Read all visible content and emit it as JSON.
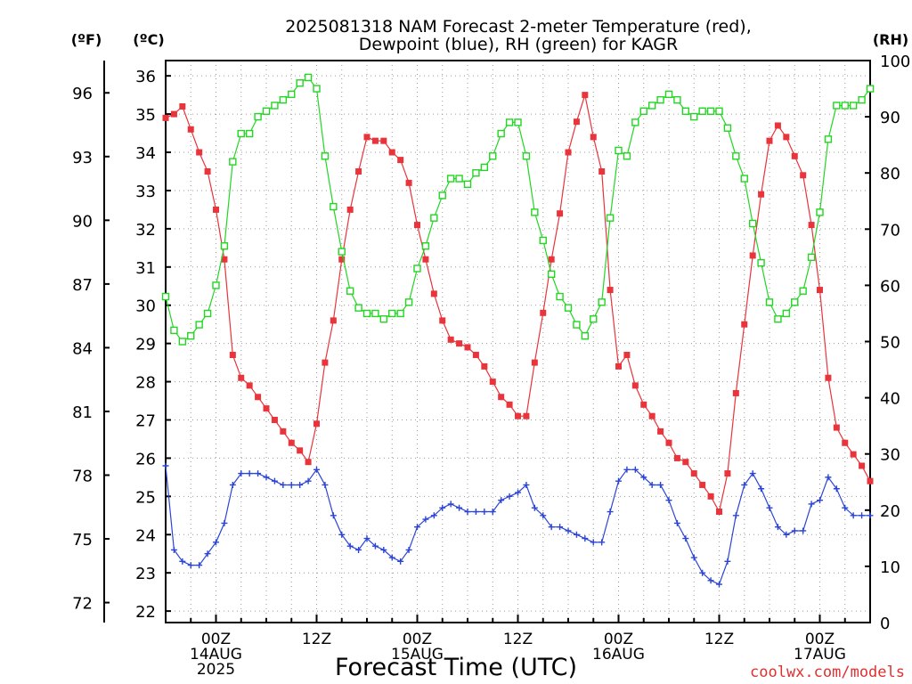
{
  "chart_data": {
    "type": "line",
    "title_line1": "2025081318 NAM Forecast 2-meter Temperature (red),",
    "title_line2": "Dewpoint (blue), RH (green) for KAGR",
    "xlabel": "Forecast Time (UTC)",
    "left_unit_outer": "(ºF)",
    "left_unit_inner": "(ºC)",
    "right_unit": "(RH)",
    "watermark": "coolwx.com/models",
    "x_forecast_hours": [
      0,
      84
    ],
    "y_celsius_range": [
      21.7,
      36.4
    ],
    "y_rh_range": [
      0,
      100
    ],
    "grid": true,
    "celsius_ticks": [
      22,
      23,
      24,
      25,
      26,
      27,
      28,
      29,
      30,
      31,
      32,
      33,
      34,
      35,
      36
    ],
    "fahrenheit_ticks": [
      72,
      75,
      78,
      81,
      84,
      87,
      90,
      93,
      96
    ],
    "rh_ticks": [
      0,
      10,
      20,
      30,
      40,
      50,
      60,
      70,
      80,
      90,
      100
    ],
    "x_ticks": [
      {
        "hour": 6,
        "lines": [
          "00Z",
          "14AUG",
          "2025"
        ]
      },
      {
        "hour": 18,
        "lines": [
          "12Z"
        ]
      },
      {
        "hour": 30,
        "lines": [
          "00Z",
          "15AUG"
        ]
      },
      {
        "hour": 42,
        "lines": [
          "12Z"
        ]
      },
      {
        "hour": 54,
        "lines": [
          "00Z",
          "16AUG"
        ]
      },
      {
        "hour": 66,
        "lines": [
          "12Z"
        ]
      },
      {
        "hour": 78,
        "lines": [
          "00Z",
          "17AUG"
        ]
      }
    ],
    "series": [
      {
        "key": "temperature",
        "color": "#e8343a",
        "marker": "filled-square",
        "axis": "celsius",
        "values": [
          34.9,
          35.0,
          35.2,
          34.6,
          34.0,
          33.5,
          32.5,
          31.2,
          28.7,
          28.1,
          27.9,
          27.6,
          27.3,
          27.0,
          26.7,
          26.4,
          26.2,
          25.9,
          26.9,
          28.5,
          29.6,
          31.2,
          32.5,
          33.5,
          34.4,
          34.3,
          34.3,
          34.0,
          33.8,
          33.2,
          32.1,
          31.2,
          30.3,
          29.6,
          29.1,
          29.0,
          28.9,
          28.7,
          28.4,
          28.0,
          27.6,
          27.4,
          27.1,
          27.1,
          28.5,
          29.8,
          31.2,
          32.4,
          34.0,
          34.8,
          35.5,
          34.4,
          33.5,
          30.4,
          28.4,
          28.7,
          27.9,
          27.4,
          27.1,
          26.7,
          26.4,
          26.0,
          25.9,
          25.6,
          25.3,
          25.0,
          24.6,
          25.6,
          27.7,
          29.5,
          31.3,
          32.9,
          34.3,
          34.7,
          34.4,
          33.9,
          33.4,
          32.1,
          30.4,
          28.1,
          26.8,
          26.4,
          26.1,
          25.8,
          25.4
        ]
      },
      {
        "key": "dewpoint",
        "color": "#2b44d6",
        "marker": "plus",
        "axis": "celsius",
        "values": [
          25.8,
          23.6,
          23.3,
          23.2,
          23.2,
          23.5,
          23.8,
          24.3,
          25.3,
          25.6,
          25.6,
          25.6,
          25.5,
          25.4,
          25.3,
          25.3,
          25.3,
          25.4,
          25.7,
          25.3,
          24.5,
          24.0,
          23.7,
          23.6,
          23.9,
          23.7,
          23.6,
          23.4,
          23.3,
          23.6,
          24.2,
          24.4,
          24.5,
          24.7,
          24.8,
          24.7,
          24.6,
          24.6,
          24.6,
          24.6,
          24.9,
          25.0,
          25.1,
          25.3,
          24.7,
          24.5,
          24.2,
          24.2,
          24.1,
          24.0,
          23.9,
          23.8,
          23.8,
          24.6,
          25.4,
          25.7,
          25.7,
          25.5,
          25.3,
          25.3,
          24.9,
          24.3,
          23.9,
          23.4,
          23.0,
          22.8,
          22.7,
          23.3,
          24.5,
          25.3,
          25.6,
          25.2,
          24.7,
          24.2,
          24.0,
          24.1,
          24.1,
          24.8,
          24.9,
          25.5,
          25.2,
          24.7,
          24.5,
          24.5,
          24.5
        ]
      },
      {
        "key": "rh",
        "color": "#22d622",
        "marker": "open-square",
        "axis": "rh",
        "values": [
          58,
          52,
          50,
          51,
          53,
          55,
          60,
          67,
          82,
          87,
          87,
          90,
          91,
          92,
          93,
          94,
          96,
          97,
          95,
          83,
          74,
          66,
          59,
          56,
          55,
          55,
          54,
          55,
          55,
          57,
          63,
          67,
          72,
          76,
          79,
          79,
          78,
          80,
          81,
          83,
          87,
          89,
          89,
          83,
          73,
          68,
          62,
          58,
          56,
          53,
          51,
          54,
          57,
          72,
          84,
          83,
          89,
          91,
          92,
          93,
          94,
          93,
          91,
          90,
          91,
          91,
          91,
          88,
          83,
          79,
          71,
          64,
          57,
          54,
          55,
          57,
          59,
          65,
          73,
          86,
          92,
          92,
          92,
          93,
          95
        ]
      }
    ]
  }
}
